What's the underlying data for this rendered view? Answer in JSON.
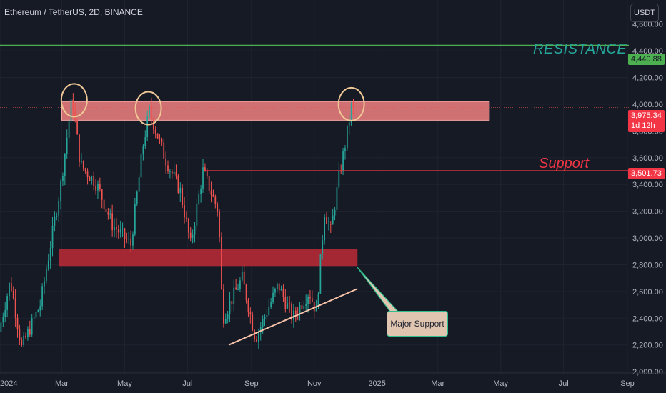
{
  "header": {
    "title": "Ethereum / TetherUS, 2D, BINANCE",
    "currency": "USDT"
  },
  "annotations": {
    "resistance_label": "RESISTANCE",
    "support_label": "Support",
    "callout": "Major Support"
  },
  "price_tags": {
    "resistance": "4,440.88",
    "current": "3,975.34",
    "countdown": "1d 12h",
    "support": "3,501.73"
  },
  "colors": {
    "background": "#161a25",
    "up": "#26a69a",
    "down": "#ef5350",
    "resistance_line": "#4caf50",
    "support_line": "#f23645",
    "resistance_zone": "#f08080",
    "support_zone": "#b22a35",
    "trendline": "#f7c2a8",
    "circle": "#f0c896"
  },
  "chart_data": {
    "type": "candlestick",
    "title": "Ethereum / TetherUS, 2D, BINANCE",
    "y_ticks": [
      2000,
      2200,
      2400,
      2600,
      2800,
      3000,
      3200,
      3400,
      3600,
      3800,
      4000,
      4200,
      4400,
      4600
    ],
    "y_tick_labels": [
      "2,000.00",
      "2,200.00",
      "2,400.00",
      "2,600.00",
      "2,800.00",
      "3,000.00",
      "3,200.00",
      "3,400.00",
      "3,600.00",
      "3,800.00",
      "4,000.00",
      "4,200.00",
      "4,400.00",
      "4,600.00"
    ],
    "x_tick_labels": [
      "2024",
      "Mar",
      "May",
      "Jul",
      "Sep",
      "Nov",
      "2025",
      "Mar",
      "May",
      "Jul",
      "Sep"
    ],
    "x_tick_dates": [
      "2024-01-01",
      "2024-03-01",
      "2024-05-01",
      "2024-07-01",
      "2024-09-01",
      "2024-11-01",
      "2025-01-01",
      "2025-03-01",
      "2025-05-01",
      "2025-07-01",
      "2025-09-01"
    ],
    "ylim": [
      1990,
      4780
    ],
    "xlim": [
      "2024-01-01",
      "2025-09-01"
    ],
    "levels": {
      "resistance": 4440.88,
      "support": 3501.73,
      "current": 3975.34
    },
    "resistance_zone": {
      "from": "2024-03-01",
      "to": "2025-04-20",
      "low": 3880,
      "high": 4020
    },
    "support_zone": {
      "from": "2024-02-27",
      "to": "2024-12-13",
      "low": 2790,
      "high": 2920
    },
    "trendline": [
      {
        "date": "2024-08-10",
        "price": 2200
      },
      {
        "date": "2024-12-13",
        "price": 2620
      }
    ],
    "circled_highs": [
      {
        "date": "2024-03-13",
        "price": 4030
      },
      {
        "date": "2024-05-24",
        "price": 3970
      },
      {
        "date": "2024-12-07",
        "price": 4000
      }
    ],
    "support_line_start": "2024-07-17",
    "key_prices": [
      {
        "date": "2024-01-01",
        "price": 2300
      },
      {
        "date": "2024-01-12",
        "price": 2680
      },
      {
        "date": "2024-01-23",
        "price": 2180
      },
      {
        "date": "2024-02-10",
        "price": 2500
      },
      {
        "date": "2024-03-01",
        "price": 3400
      },
      {
        "date": "2024-03-12",
        "price": 4050
      },
      {
        "date": "2024-03-20",
        "price": 3550
      },
      {
        "date": "2024-04-05",
        "price": 3400
      },
      {
        "date": "2024-04-20",
        "price": 3100
      },
      {
        "date": "2024-05-08",
        "price": 2950
      },
      {
        "date": "2024-05-20",
        "price": 3700
      },
      {
        "date": "2024-05-26",
        "price": 3950
      },
      {
        "date": "2024-06-10",
        "price": 3600
      },
      {
        "date": "2024-06-25",
        "price": 3350
      },
      {
        "date": "2024-07-05",
        "price": 2950
      },
      {
        "date": "2024-07-17",
        "price": 3500
      },
      {
        "date": "2024-08-01",
        "price": 3200
      },
      {
        "date": "2024-08-05",
        "price": 2400
      },
      {
        "date": "2024-08-24",
        "price": 2700
      },
      {
        "date": "2024-09-06",
        "price": 2250
      },
      {
        "date": "2024-09-28",
        "price": 2650
      },
      {
        "date": "2024-10-12",
        "price": 2400
      },
      {
        "date": "2024-10-28",
        "price": 2600
      },
      {
        "date": "2024-11-04",
        "price": 2450
      },
      {
        "date": "2024-11-12",
        "price": 3200
      },
      {
        "date": "2024-11-18",
        "price": 3050
      },
      {
        "date": "2024-11-26",
        "price": 3450
      },
      {
        "date": "2024-12-02",
        "price": 3700
      },
      {
        "date": "2024-12-08",
        "price": 3975
      }
    ]
  }
}
